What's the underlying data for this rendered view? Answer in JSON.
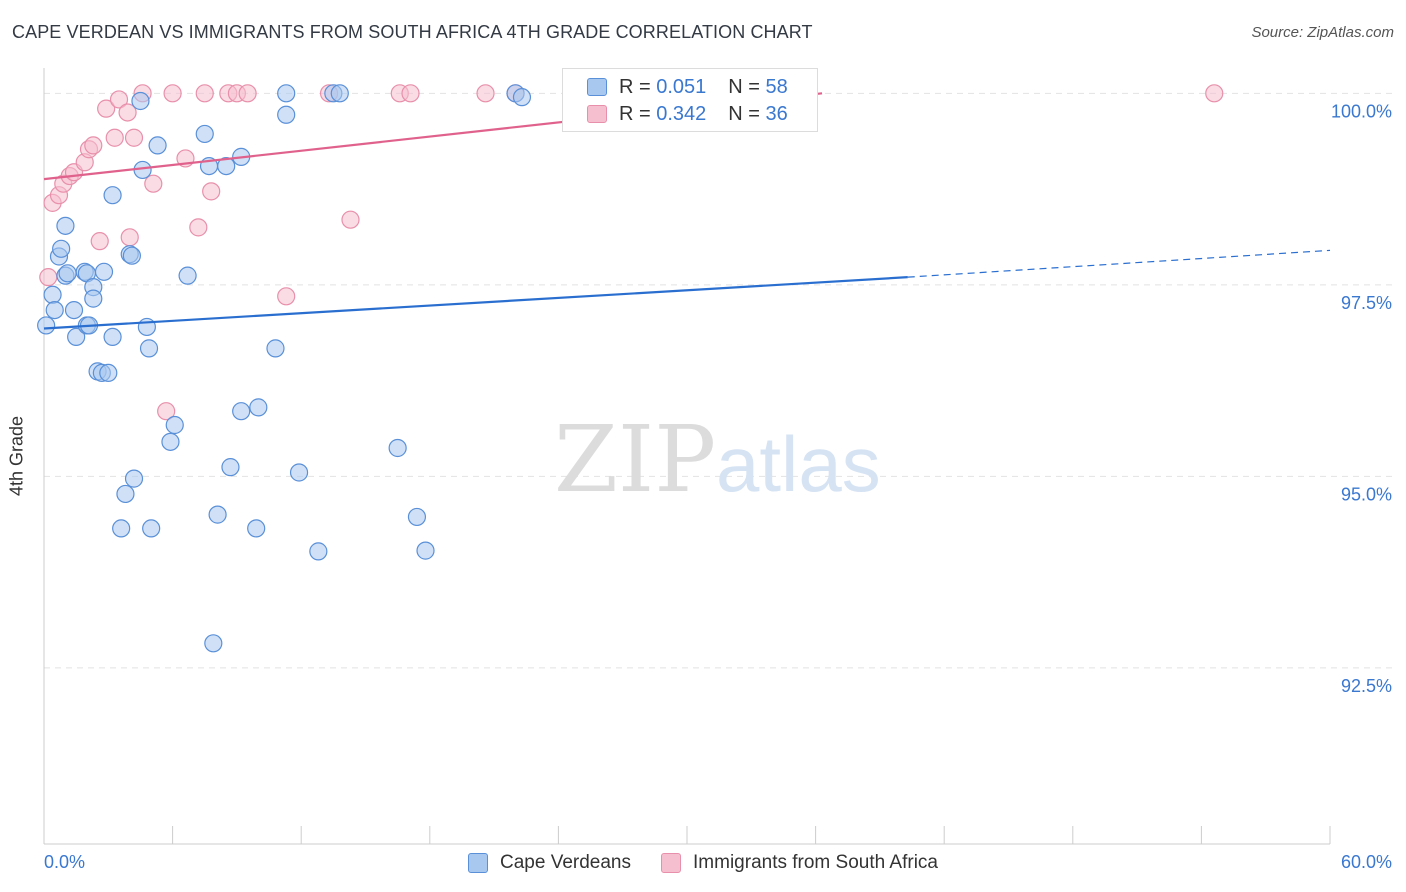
{
  "title": "CAPE VERDEAN VS IMMIGRANTS FROM SOUTH AFRICA 4TH GRADE CORRELATION CHART",
  "source": "Source: ZipAtlas.com",
  "watermark": {
    "zip": "ZIP",
    "atlas": "atlas"
  },
  "legend": {
    "r_label": "R =",
    "n_label": "N =",
    "series1": {
      "r": "0.051",
      "n": "58"
    },
    "series2": {
      "r": "0.342",
      "n": "36"
    }
  },
  "bottom_legend": {
    "series1": "Cape Verdeans",
    "series2": "Immigrants from South Africa"
  },
  "colors": {
    "series1_fill": "#a9c8f0",
    "series1_stroke": "#5a90d8",
    "series1_line": "#2a6fd0",
    "series2_fill": "#f6bfd0",
    "series2_stroke": "#e890ab",
    "series2_line": "#e0628c",
    "tick_text": "#3a78d0"
  },
  "chart_data": {
    "type": "scatter",
    "title": "CAPE VERDEAN VS IMMIGRANTS FROM SOUTH AFRICA 4TH GRADE CORRELATION CHART",
    "xlabel": "",
    "ylabel": "4th Grade",
    "xlim": [
      0,
      60
    ],
    "ylim": [
      90.2,
      100.2
    ],
    "x_tick_labels": [
      "0.0%",
      "60.0%"
    ],
    "y_ticks": [
      92.5,
      95.0,
      97.5,
      100.0
    ],
    "y_tick_labels": [
      "92.5%",
      "95.0%",
      "97.5%",
      "100.0%"
    ],
    "grid": "horizontal dashed",
    "legend_position": "top-center",
    "series": [
      {
        "name": "Cape Verdeans",
        "r": 0.051,
        "n": 58,
        "trend": {
          "x": [
            0,
            40.3
          ],
          "y": [
            96.93,
            97.6
          ],
          "dashed_to": [
            60,
            97.95
          ]
        },
        "points": [
          [
            0.1,
            96.97
          ],
          [
            0.4,
            97.37
          ],
          [
            0.5,
            97.17
          ],
          [
            0.7,
            97.87
          ],
          [
            0.8,
            97.97
          ],
          [
            1.0,
            97.62
          ],
          [
            1.0,
            98.27
          ],
          [
            1.1,
            97.65
          ],
          [
            1.4,
            97.17
          ],
          [
            1.5,
            96.82
          ],
          [
            1.9,
            97.67
          ],
          [
            2.0,
            97.65
          ],
          [
            2.0,
            96.97
          ],
          [
            2.1,
            96.97
          ],
          [
            2.3,
            97.47
          ],
          [
            2.3,
            97.32
          ],
          [
            2.5,
            96.37
          ],
          [
            2.7,
            96.35
          ],
          [
            2.8,
            97.67
          ],
          [
            3.0,
            96.35
          ],
          [
            3.2,
            98.67
          ],
          [
            3.2,
            96.82
          ],
          [
            3.6,
            94.32
          ],
          [
            3.8,
            94.77
          ],
          [
            4.0,
            97.9
          ],
          [
            4.1,
            97.88
          ],
          [
            4.2,
            94.97
          ],
          [
            4.5,
            99.9
          ],
          [
            4.6,
            99.0
          ],
          [
            4.8,
            96.95
          ],
          [
            4.9,
            96.67
          ],
          [
            5.0,
            94.32
          ],
          [
            5.3,
            99.32
          ],
          [
            5.9,
            95.45
          ],
          [
            6.1,
            95.67
          ],
          [
            6.7,
            97.62
          ],
          [
            7.5,
            99.47
          ],
          [
            7.7,
            99.05
          ],
          [
            7.9,
            92.82
          ],
          [
            8.1,
            94.5
          ],
          [
            8.5,
            99.05
          ],
          [
            8.7,
            95.12
          ],
          [
            9.2,
            95.85
          ],
          [
            9.2,
            99.17
          ],
          [
            9.9,
            94.32
          ],
          [
            10.0,
            95.9
          ],
          [
            10.8,
            96.67
          ],
          [
            11.3,
            100.0
          ],
          [
            11.3,
            99.72
          ],
          [
            11.9,
            95.05
          ],
          [
            12.8,
            94.02
          ],
          [
            13.5,
            100.0
          ],
          [
            13.8,
            100.0
          ],
          [
            16.5,
            95.37
          ],
          [
            17.4,
            94.47
          ],
          [
            17.8,
            94.03
          ],
          [
            22.0,
            100.0
          ],
          [
            22.3,
            99.95
          ]
        ]
      },
      {
        "name": "Immigrants from South Africa",
        "r": 0.342,
        "n": 36,
        "trend": {
          "x": [
            0,
            36.3
          ],
          "y": [
            98.88,
            100.0
          ]
        },
        "points": [
          [
            0.2,
            97.6
          ],
          [
            0.4,
            98.57
          ],
          [
            0.7,
            98.67
          ],
          [
            0.9,
            98.82
          ],
          [
            1.2,
            98.92
          ],
          [
            1.4,
            98.97
          ],
          [
            1.9,
            99.1
          ],
          [
            2.1,
            99.27
          ],
          [
            2.3,
            99.32
          ],
          [
            2.6,
            98.07
          ],
          [
            2.9,
            99.8
          ],
          [
            3.3,
            99.42
          ],
          [
            3.5,
            99.92
          ],
          [
            3.9,
            99.75
          ],
          [
            4.0,
            98.12
          ],
          [
            4.2,
            99.42
          ],
          [
            4.6,
            100.0
          ],
          [
            5.1,
            98.82
          ],
          [
            5.7,
            95.85
          ],
          [
            6.0,
            100.0
          ],
          [
            6.6,
            99.15
          ],
          [
            7.2,
            98.25
          ],
          [
            7.5,
            100.0
          ],
          [
            7.8,
            98.72
          ],
          [
            8.6,
            100.0
          ],
          [
            9.0,
            100.0
          ],
          [
            9.5,
            100.0
          ],
          [
            11.3,
            97.35
          ],
          [
            13.3,
            100.0
          ],
          [
            14.3,
            98.35
          ],
          [
            16.6,
            100.0
          ],
          [
            17.1,
            100.0
          ],
          [
            20.6,
            100.0
          ],
          [
            22.0,
            100.0
          ],
          [
            33.3,
            100.0
          ],
          [
            54.6,
            100.0
          ]
        ]
      }
    ]
  }
}
